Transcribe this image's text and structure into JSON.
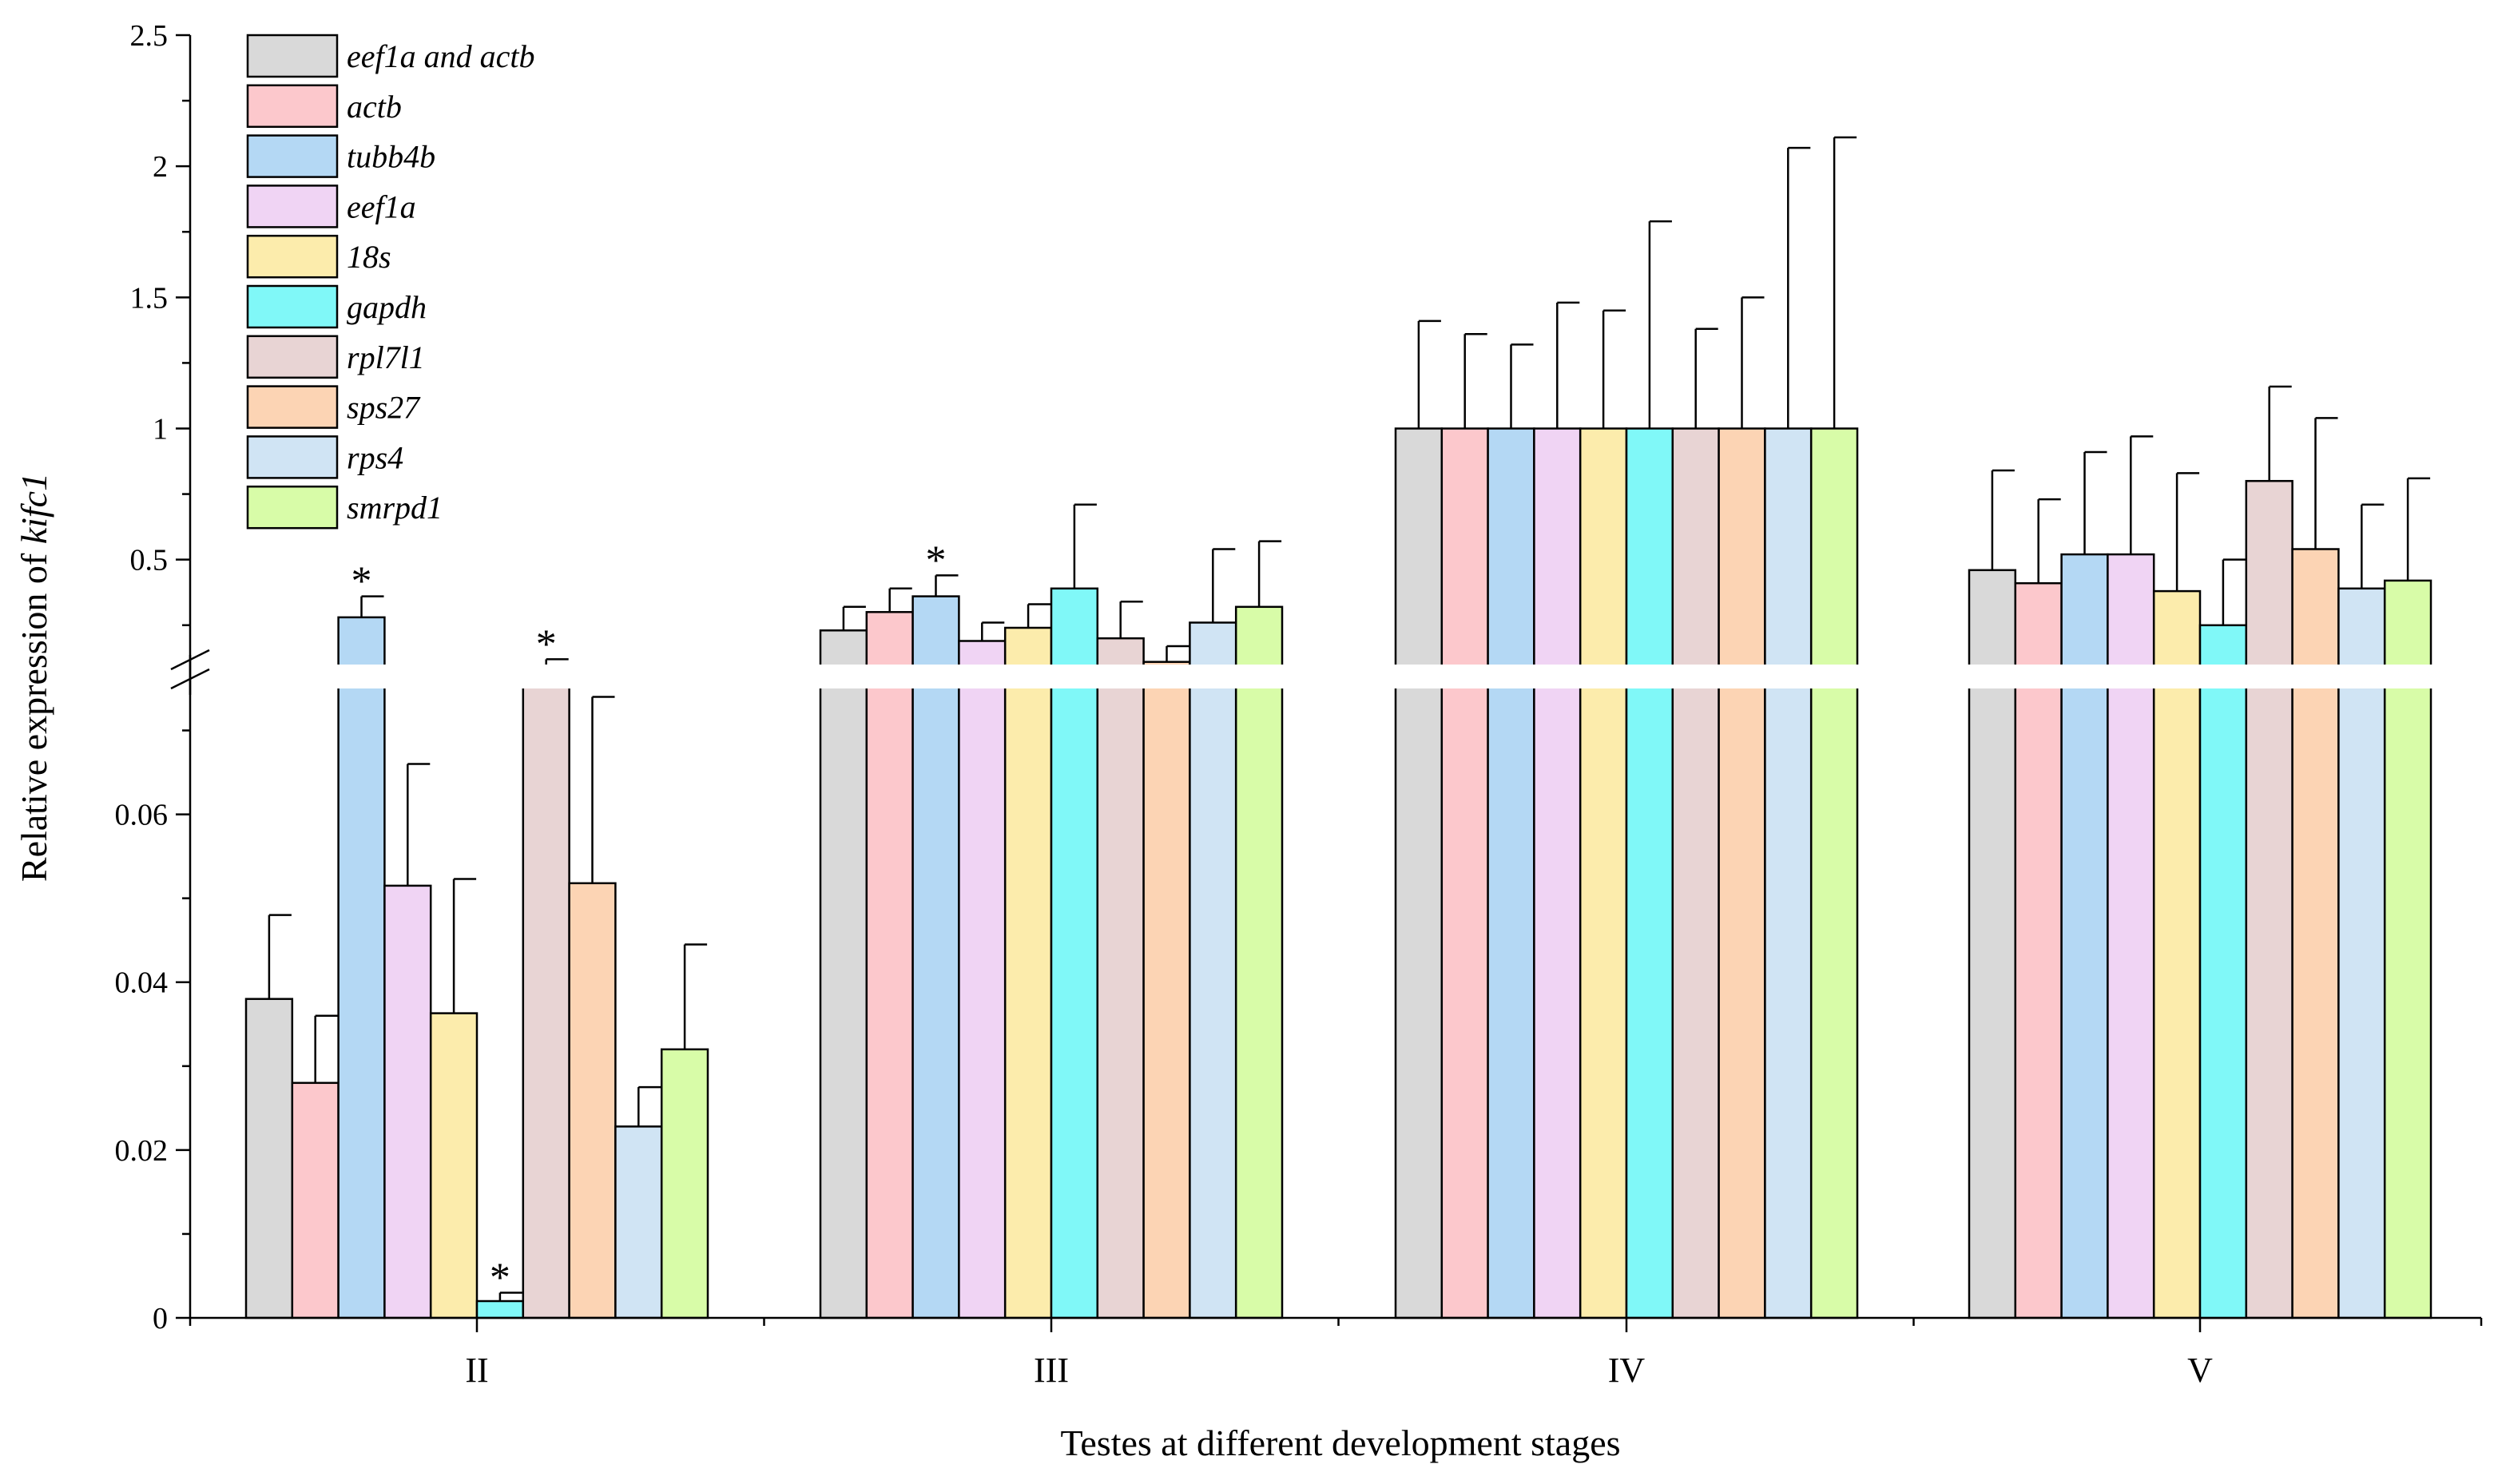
{
  "chart_data": {
    "type": "bar",
    "xlabel": "Testes at different development stages",
    "ylabel_prefix": "Relative expression of ",
    "ylabel_gene": "kifc1",
    "categories": [
      "II",
      "III",
      "IV",
      "V"
    ],
    "y_axis_broken": true,
    "lower_segment": {
      "ylim": [
        0,
        0.075
      ],
      "ticks": [
        "0",
        "0.02",
        "0.04",
        "0.06"
      ],
      "tick_values": [
        0,
        0.02,
        0.04,
        0.06
      ]
    },
    "upper_segment": {
      "ylim": [
        0.1,
        2.5
      ],
      "ticks": [
        "0.5",
        "1",
        "1.5",
        "2",
        "2.5"
      ],
      "tick_values": [
        0.5,
        1,
        1.5,
        2,
        2.5
      ]
    },
    "series": [
      {
        "name": "eef1a and actb",
        "color": "#d9d9d9",
        "values": [
          0.038,
          0.23,
          1.0,
          0.46
        ],
        "errors": [
          0.01,
          0.09,
          0.41,
          0.38
        ]
      },
      {
        "name": "actb",
        "color": "#fcc8cc",
        "values": [
          0.028,
          0.3,
          1.0,
          0.41
        ],
        "errors": [
          0.008,
          0.09,
          0.36,
          0.32
        ]
      },
      {
        "name": "tubb4b",
        "color": "#b4d8f4",
        "values": [
          0.28,
          0.36,
          1.0,
          0.52
        ],
        "errors": [
          0.08,
          0.08,
          0.32,
          0.39
        ]
      },
      {
        "name": "eef1a",
        "color": "#f0d4f4",
        "values": [
          0.0515,
          0.19,
          1.0,
          0.52
        ],
        "errors": [
          0.0145,
          0.07,
          0.48,
          0.45
        ]
      },
      {
        "name": "18s",
        "color": "#fcecac",
        "values": [
          0.0363,
          0.24,
          1.0,
          0.38
        ],
        "errors": [
          0.016,
          0.09,
          0.45,
          0.45
        ]
      },
      {
        "name": "gapdh",
        "color": "#80f8f8",
        "values": [
          0.002,
          0.39,
          1.0,
          0.25
        ],
        "errors": [
          0.001,
          0.32,
          0.79,
          0.25
        ]
      },
      {
        "name": "rpl7l1",
        "color": "#e8d4d4",
        "values": [
          0.08,
          0.2,
          1.0,
          0.8
        ],
        "errors": [
          0.04,
          0.14,
          0.38,
          0.36
        ]
      },
      {
        "name": "sps27",
        "color": "#fcd4b4",
        "values": [
          0.0518,
          0.11,
          1.0,
          0.54
        ],
        "errors": [
          0.0222,
          0.06,
          0.5,
          0.5
        ]
      },
      {
        "name": "rps4",
        "color": "#d0e4f4",
        "values": [
          0.0228,
          0.26,
          1.0,
          0.39
        ],
        "errors": [
          0.0047,
          0.28,
          1.07,
          0.32
        ]
      },
      {
        "name": "smrpd1",
        "color": "#d8fca8",
        "values": [
          0.032,
          0.32,
          1.0,
          0.42
        ],
        "errors": [
          0.0125,
          0.25,
          1.11,
          0.39
        ]
      }
    ],
    "significance": [
      {
        "category": 0,
        "series": 2,
        "label": "*"
      },
      {
        "category": 0,
        "series": 5,
        "label": "*"
      },
      {
        "category": 0,
        "series": 6,
        "label": "*"
      },
      {
        "category": 1,
        "series": 2,
        "label": "*"
      }
    ],
    "legend_position": "top-left"
  }
}
